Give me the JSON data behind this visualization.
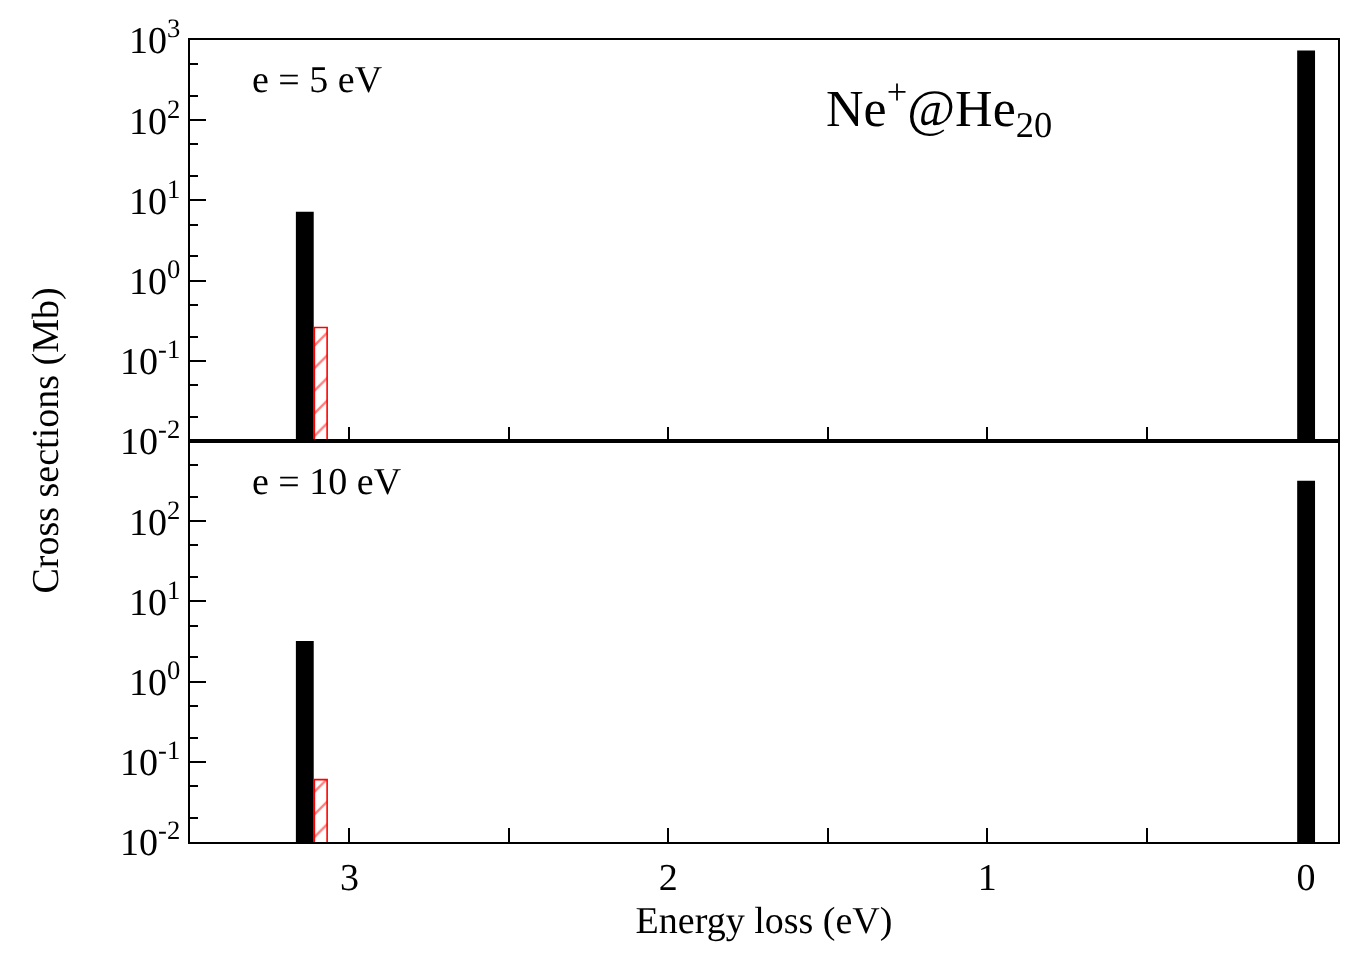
{
  "chart_data": [
    {
      "type": "bar",
      "ylabel": "Cross sections (Mb)",
      "annotations": [
        "e = 5 eV",
        "Ne$^{+}$@He$_{20}$"
      ],
      "log": "y",
      "grid": false,
      "tick_labels": "y",
      "series": [
        {
          "color": "#000000",
          "x": [
            3.14,
            0
          ],
          "values": [
            7.2,
            740
          ]
        },
        {
          "color": "#ff0000",
          "x": [
            3.09
          ],
          "values": [
            0.26
          ]
        }
      ],
      "xlim": [
        3.5,
        -0.1
      ],
      "xticks": [
        3,
        2.5,
        2,
        1.5,
        1,
        0.5,
        0
      ],
      "ylim": [
        0.01,
        1000
      ],
      "yticks": [
        {
          "value": 0.01,
          "label": "10$^{-2}$"
        },
        {
          "value": 0.1,
          "label": "10$^{-1}$"
        },
        {
          "value": 1,
          "label": "10$^{0}$"
        },
        {
          "value": 10,
          "label": "10$^{1}$"
        },
        {
          "value": 100,
          "label": "10$^{2}$"
        },
        {
          "value": 1000,
          "label": "10$^{3}$"
        }
      ]
    },
    {
      "type": "bar",
      "xlabel": "Energy loss (eV)",
      "annotations": [
        "e = 10 eV"
      ],
      "log": "y",
      "grid": false,
      "series": [
        {
          "color": "#000000",
          "x": [
            3.14,
            0
          ],
          "values": [
            3.2,
            320
          ]
        },
        {
          "color": "#ff0000",
          "x": [
            3.09
          ],
          "values": [
            0.06
          ]
        }
      ],
      "xlim": [
        3.5,
        -0.1
      ],
      "xticks": [
        {
          "value": 3,
          "label": "3"
        },
        {
          "value": 2.5,
          "label": null
        },
        {
          "value": 2,
          "label": "2"
        },
        {
          "value": 1.5,
          "label": null
        },
        {
          "value": 1,
          "label": "1"
        },
        {
          "value": 0.5,
          "label": null
        },
        {
          "value": 0,
          "label": "0"
        }
      ],
      "ylim": [
        0.01,
        1000
      ],
      "yticks": [
        {
          "value": 0.01,
          "label": "10$^{-2}$"
        },
        {
          "value": 0.1,
          "label": "10$^{-1}$"
        },
        {
          "value": 1,
          "label": "10$^{0}$"
        },
        {
          "value": 10,
          "label": "10$^{1}$"
        },
        {
          "value": 100,
          "label": "10$^{2}$"
        }
      ]
    }
  ]
}
